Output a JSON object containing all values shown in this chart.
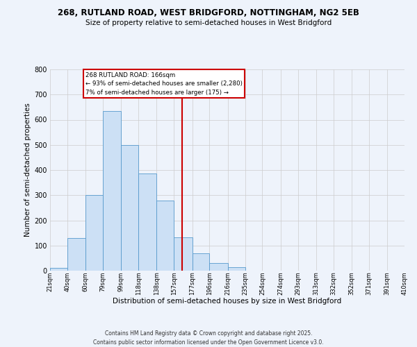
{
  "title1": "268, RUTLAND ROAD, WEST BRIDGFORD, NOTTINGHAM, NG2 5EB",
  "title2": "Size of property relative to semi-detached houses in West Bridgford",
  "xlabel": "Distribution of semi-detached houses by size in West Bridgford",
  "ylabel": "Number of semi-detached properties",
  "bin_labels": [
    "21sqm",
    "40sqm",
    "60sqm",
    "79sqm",
    "99sqm",
    "118sqm",
    "138sqm",
    "157sqm",
    "177sqm",
    "196sqm",
    "216sqm",
    "235sqm",
    "254sqm",
    "274sqm",
    "293sqm",
    "313sqm",
    "332sqm",
    "352sqm",
    "371sqm",
    "391sqm",
    "410sqm"
  ],
  "bin_edges": [
    21,
    40,
    60,
    79,
    99,
    118,
    138,
    157,
    177,
    196,
    216,
    235,
    254,
    274,
    293,
    313,
    332,
    352,
    371,
    391,
    410
  ],
  "bar_heights": [
    10,
    130,
    300,
    635,
    500,
    385,
    280,
    133,
    70,
    30,
    15,
    0,
    0,
    0,
    0,
    0,
    0,
    0,
    0,
    0
  ],
  "bar_facecolor": "#cce0f5",
  "bar_edgecolor": "#5599cc",
  "property_size": 166,
  "vline_color": "#cc0000",
  "annotation_box_edgecolor": "#cc0000",
  "annotation_title": "268 RUTLAND ROAD: 166sqm",
  "annotation_line1": "← 93% of semi-detached houses are smaller (2,280)",
  "annotation_line2": "7% of semi-detached houses are larger (175) →",
  "ylim": [
    0,
    800
  ],
  "yticks": [
    0,
    100,
    200,
    300,
    400,
    500,
    600,
    700,
    800
  ],
  "grid_color": "#cccccc",
  "bg_color": "#eef3fb",
  "footer1": "Contains HM Land Registry data © Crown copyright and database right 2025.",
  "footer2": "Contains public sector information licensed under the Open Government Licence v3.0."
}
